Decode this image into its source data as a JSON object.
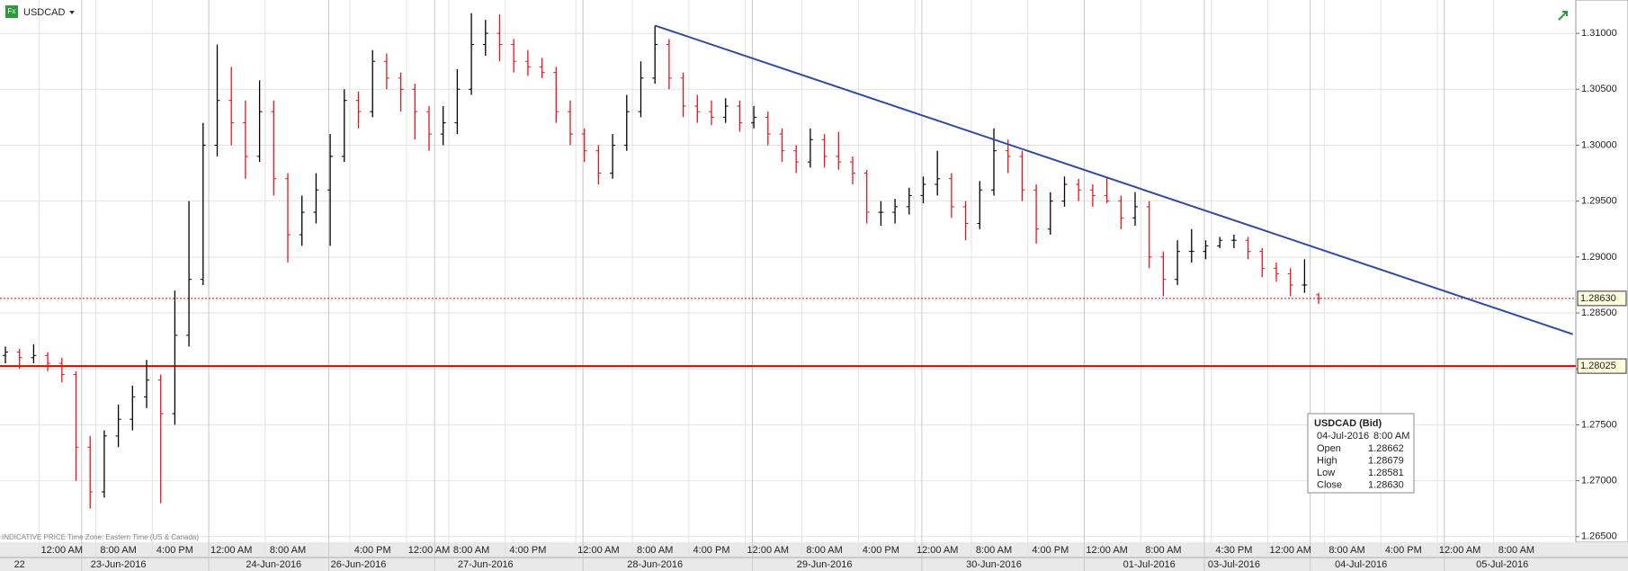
{
  "header": {
    "symbol": "USDCAD"
  },
  "chart_data": {
    "type": "ohlc",
    "categories": [
      null,
      null,
      null,
      null,
      "12:00 AM",
      null,
      null,
      null,
      "8:00 AM",
      null,
      null,
      null,
      "4:00 PM",
      null,
      null,
      null,
      "12:00 AM",
      null,
      null,
      null,
      "8:00 AM",
      null,
      null,
      null,
      null,
      null,
      "4:00 PM",
      null,
      null,
      null,
      "12:00 AM",
      null,
      null,
      "8:00 AM",
      null,
      null,
      null,
      "4:00 PM",
      null,
      null,
      null,
      null,
      "12:00 AM",
      null,
      null,
      null,
      "8:00 AM",
      null,
      null,
      null,
      "4:00 PM",
      null,
      null,
      null,
      "12:00 AM",
      null,
      null,
      null,
      "8:00 AM",
      null,
      null,
      null,
      "4:00 PM",
      null,
      null,
      null,
      "12:00 AM",
      null,
      null,
      null,
      "8:00 AM",
      null,
      null,
      null,
      "4:00 PM",
      null,
      null,
      null,
      "12:00 AM",
      null,
      null,
      null,
      "8:00 AM",
      null,
      null,
      null,
      null,
      "4:30 PM",
      null,
      null,
      null,
      "12:00 AM",
      null,
      null,
      null,
      "8:00 AM",
      null,
      null,
      null,
      "4:00 PM",
      null,
      null,
      null,
      "12:00 AM",
      null,
      null,
      null,
      "8:00 AM",
      null,
      null,
      null,
      null
    ],
    "dates": [
      null,
      "22",
      null,
      null,
      null,
      null,
      null,
      null,
      "23-Jun-2016",
      null,
      null,
      null,
      null,
      null,
      null,
      null,
      null,
      null,
      null,
      "24-Jun-2016",
      null,
      null,
      null,
      null,
      null,
      "26-Jun-2016",
      null,
      null,
      null,
      null,
      null,
      null,
      null,
      null,
      "27-Jun-2016",
      null,
      null,
      null,
      null,
      null,
      null,
      null,
      null,
      null,
      null,
      null,
      "28-Jun-2016",
      null,
      null,
      null,
      null,
      null,
      null,
      null,
      null,
      null,
      null,
      null,
      "29-Jun-2016",
      null,
      null,
      null,
      null,
      null,
      null,
      null,
      null,
      null,
      null,
      null,
      "30-Jun-2016",
      null,
      null,
      null,
      null,
      null,
      null,
      null,
      null,
      null,
      null,
      "01-Jul-2016",
      null,
      null,
      null,
      null,
      null,
      "03-Jul-2016",
      null,
      null,
      null,
      null,
      null,
      null,
      null,
      null,
      "04-Jul-2016",
      null,
      null,
      null,
      null,
      null,
      null,
      null,
      null,
      null,
      "05-Jul-2016",
      null,
      null,
      null,
      null,
      null
    ],
    "ohlc": [
      [
        1.2812,
        1.282,
        1.2805,
        1.2815
      ],
      [
        1.2815,
        1.2818,
        1.28,
        1.281
      ],
      [
        1.281,
        1.2822,
        1.2805,
        1.2812
      ],
      [
        1.2812,
        1.2815,
        1.2798,
        1.2805
      ],
      [
        1.2805,
        1.281,
        1.2788,
        1.2795
      ],
      [
        1.2795,
        1.2798,
        1.27,
        1.273
      ],
      [
        1.273,
        1.274,
        1.2675,
        1.269
      ],
      [
        1.269,
        1.2745,
        1.2685,
        1.274
      ],
      [
        1.274,
        1.2768,
        1.273,
        1.2755
      ],
      [
        1.2755,
        1.2785,
        1.2745,
        1.2775
      ],
      [
        1.2775,
        1.2808,
        1.2765,
        1.279
      ],
      [
        1.279,
        1.2795,
        1.268,
        1.276
      ],
      [
        1.276,
        1.287,
        1.275,
        1.283
      ],
      [
        1.283,
        1.295,
        1.282,
        1.288
      ],
      [
        1.288,
        1.302,
        1.2875,
        1.3
      ],
      [
        1.3,
        1.309,
        1.299,
        1.304
      ],
      [
        1.304,
        1.307,
        1.3,
        1.302
      ],
      [
        1.302,
        1.304,
        1.297,
        1.299
      ],
      [
        1.299,
        1.3058,
        1.2985,
        1.303
      ],
      [
        1.303,
        1.304,
        1.2955,
        1.297
      ],
      [
        1.297,
        1.2975,
        1.2895,
        1.292
      ],
      [
        1.292,
        1.2955,
        1.291,
        1.294
      ],
      [
        1.294,
        1.2975,
        1.293,
        1.296
      ],
      [
        1.296,
        1.301,
        1.291,
        1.299
      ],
      [
        1.299,
        1.305,
        1.2985,
        1.304
      ],
      [
        1.304,
        1.3048,
        1.3015,
        1.303
      ],
      [
        1.303,
        1.3085,
        1.3025,
        1.3075
      ],
      [
        1.3075,
        1.3082,
        1.305,
        1.306
      ],
      [
        1.306,
        1.3065,
        1.303,
        1.305
      ],
      [
        1.305,
        1.3055,
        1.3005,
        1.303
      ],
      [
        1.303,
        1.3035,
        1.2995,
        1.301
      ],
      [
        1.301,
        1.3035,
        1.3,
        1.302
      ],
      [
        1.302,
        1.3068,
        1.301,
        1.305
      ],
      [
        1.305,
        1.3118,
        1.3045,
        1.309
      ],
      [
        1.309,
        1.3112,
        1.308,
        1.31
      ],
      [
        1.31,
        1.3117,
        1.3075,
        1.309
      ],
      [
        1.309,
        1.3095,
        1.3065,
        1.3075
      ],
      [
        1.3075,
        1.3085,
        1.3062,
        1.307
      ],
      [
        1.307,
        1.3078,
        1.306,
        1.3065
      ],
      [
        1.3065,
        1.307,
        1.302,
        1.303
      ],
      [
        1.303,
        1.304,
        1.3,
        1.301
      ],
      [
        1.301,
        1.3015,
        1.2985,
        1.2995
      ],
      [
        1.2995,
        1.3,
        1.2965,
        1.2975
      ],
      [
        1.2975,
        1.301,
        1.297,
        1.3
      ],
      [
        1.3,
        1.3045,
        1.2995,
        1.303
      ],
      [
        1.303,
        1.3075,
        1.3025,
        1.306
      ],
      [
        1.306,
        1.3107,
        1.3055,
        1.309
      ],
      [
        1.309,
        1.3095,
        1.305,
        1.306
      ],
      [
        1.306,
        1.3065,
        1.3025,
        1.3035
      ],
      [
        1.3035,
        1.3045,
        1.302,
        1.303
      ],
      [
        1.303,
        1.304,
        1.3018,
        1.3025
      ],
      [
        1.3025,
        1.3042,
        1.302,
        1.3035
      ],
      [
        1.3035,
        1.304,
        1.3012,
        1.302
      ],
      [
        1.302,
        1.3035,
        1.3015,
        1.3025
      ],
      [
        1.3025,
        1.303,
        1.3,
        1.301
      ],
      [
        1.301,
        1.3015,
        1.2985,
        1.2995
      ],
      [
        1.2995,
        1.3,
        1.2975,
        1.2985
      ],
      [
        1.2985,
        1.3015,
        1.298,
        1.3005
      ],
      [
        1.3005,
        1.301,
        1.298,
        1.299
      ],
      [
        1.299,
        1.3012,
        1.2978,
        1.2985
      ],
      [
        1.2985,
        1.299,
        1.2965,
        1.2975
      ],
      [
        1.2975,
        1.2978,
        1.293,
        1.294
      ],
      [
        1.294,
        1.295,
        1.2928,
        1.294
      ],
      [
        1.294,
        1.2952,
        1.293,
        1.2945
      ],
      [
        1.2945,
        1.2962,
        1.2938,
        1.2955
      ],
      [
        1.2955,
        1.2972,
        1.2948,
        1.2965
      ],
      [
        1.2965,
        1.2995,
        1.2955,
        1.297
      ],
      [
        1.297,
        1.2975,
        1.2935,
        1.2945
      ],
      [
        1.2945,
        1.295,
        1.2915,
        1.293
      ],
      [
        1.293,
        1.2968,
        1.2925,
        1.296
      ],
      [
        1.296,
        1.3015,
        1.2955,
        1.2995
      ],
      [
        1.2995,
        1.3005,
        1.2975,
        1.299
      ],
      [
        1.299,
        1.2995,
        1.295,
        1.296
      ],
      [
        1.296,
        1.2965,
        1.2912,
        1.2925
      ],
      [
        1.2925,
        1.2958,
        1.292,
        1.295
      ],
      [
        1.295,
        1.2972,
        1.2945,
        1.2965
      ],
      [
        1.2965,
        1.297,
        1.295,
        1.296
      ],
      [
        1.296,
        1.2965,
        1.2945,
        1.2955
      ],
      [
        1.2955,
        1.2972,
        1.2948,
        1.295
      ],
      [
        1.295,
        1.2955,
        1.2925,
        1.2935
      ],
      [
        1.2935,
        1.2958,
        1.2928,
        1.2945
      ],
      [
        1.2945,
        1.295,
        1.289,
        1.29
      ],
      [
        1.29,
        1.2905,
        1.2865,
        1.288
      ],
      [
        1.288,
        1.2915,
        1.2875,
        1.2905
      ],
      [
        1.2905,
        1.2925,
        1.2895,
        1.2905
      ],
      [
        1.2905,
        1.2915,
        1.2898,
        1.291
      ],
      [
        1.291,
        1.2918,
        1.2908,
        1.2915
      ],
      [
        1.2915,
        1.292,
        1.2908,
        1.2915
      ],
      [
        1.2915,
        1.2918,
        1.2898,
        1.2905
      ],
      [
        1.2905,
        1.2908,
        1.2882,
        1.289
      ],
      [
        1.289,
        1.2895,
        1.2878,
        1.2885
      ],
      [
        1.2885,
        1.289,
        1.2865,
        1.2875
      ],
      [
        1.2875,
        1.2898,
        1.2868,
        1.2875
      ],
      [
        1.28662,
        1.28679,
        1.28581,
        1.2863
      ],
      null,
      null,
      null,
      null,
      null,
      null,
      null,
      null,
      null,
      null,
      null,
      null,
      null,
      null,
      null,
      null,
      null,
      null
    ],
    "up_color": "#000000",
    "down_color": "#e8141b",
    "ylim": [
      1.2645,
      1.3125
    ],
    "yticks": [
      {
        "value": 1.265,
        "label": "1.26500"
      },
      {
        "value": 1.27,
        "label": "1.27000"
      },
      {
        "value": 1.275,
        "label": "1.27500"
      },
      {
        "value": 1.28,
        "label": "1.28000"
      },
      {
        "value": 1.285,
        "label": "1.28500"
      },
      {
        "value": 1.29,
        "label": "1.29000"
      },
      {
        "value": 1.295,
        "label": "1.29500"
      },
      {
        "value": 1.3,
        "label": "1.30000"
      },
      {
        "value": 1.305,
        "label": "1.30500"
      },
      {
        "value": 1.31,
        "label": "1.31000"
      }
    ],
    "grid": true,
    "hlines": [
      {
        "value": 1.28025,
        "label": "1.28025",
        "style": "solid",
        "color": "#e00000"
      },
      {
        "value": 1.2863,
        "label": "1.28630",
        "style": "dotted",
        "color": "#e00000"
      }
    ],
    "trendline": {
      "x": [
        46,
        111
      ],
      "y": [
        1.3107,
        1.2831
      ],
      "color": "#2f4ba8"
    },
    "footnote": "INDICATIVE PRICE   Time Zone: Eastern Time (US & Canada)",
    "info_box": {
      "title": "USDCAD (Bid)",
      "date": "04-Jul-2016",
      "time": "8:00 AM",
      "rows": [
        [
          "Open",
          "1.28662"
        ],
        [
          "High",
          "1.28679"
        ],
        [
          "Low",
          "1.28581"
        ],
        [
          "Close",
          "1.28630"
        ]
      ]
    }
  }
}
